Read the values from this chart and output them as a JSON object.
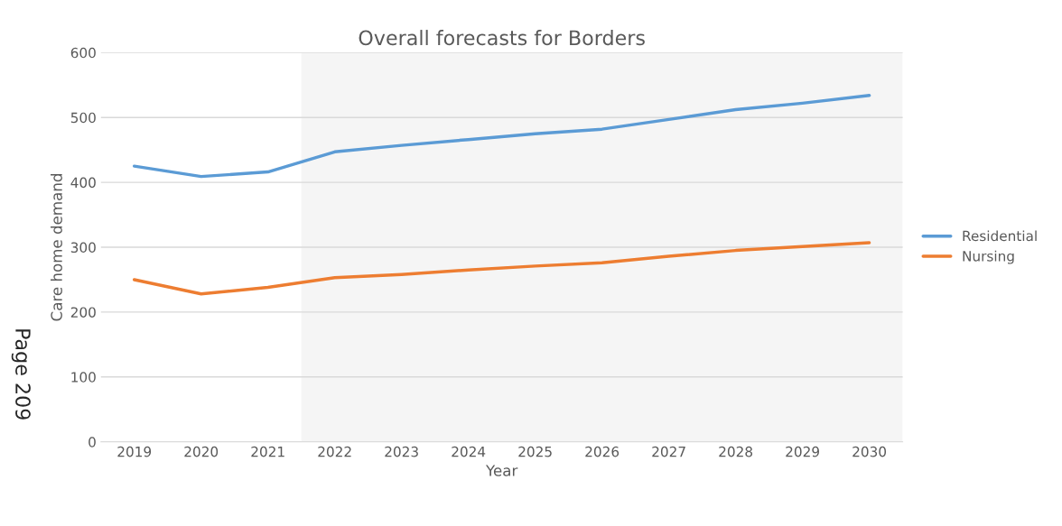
{
  "chart_data": {
    "type": "line",
    "title": "Overall forecasts for Borders",
    "xlabel": "Year",
    "ylabel": "Care home demand",
    "x": [
      2019,
      2020,
      2021,
      2022,
      2023,
      2024,
      2025,
      2026,
      2027,
      2028,
      2029,
      2030
    ],
    "series": [
      {
        "name": "Residential",
        "color": "#5b9bd5",
        "values": [
          425,
          409,
          416,
          447,
          457,
          466,
          475,
          482,
          497,
          512,
          522,
          534
        ]
      },
      {
        "name": "Nursing",
        "color": "#ed7d31",
        "values": [
          250,
          228,
          238,
          253,
          258,
          265,
          271,
          276,
          286,
          295,
          301,
          307
        ]
      }
    ],
    "xlim": [
      2018.5,
      2030.5
    ],
    "xticks": [
      2019,
      2020,
      2021,
      2022,
      2023,
      2024,
      2025,
      2026,
      2027,
      2028,
      2029,
      2030
    ],
    "ylim": [
      0,
      600
    ],
    "yticks": [
      0,
      100,
      200,
      300,
      400,
      500,
      600
    ],
    "bands": [
      {
        "axis": "x",
        "from": 2021.5,
        "to": 2030.5,
        "color": "#f5f5f5"
      }
    ],
    "grid": "y",
    "legend": "right",
    "marker": "none",
    "line_style": "solid",
    "annotations": [
      "Page 209"
    ]
  }
}
